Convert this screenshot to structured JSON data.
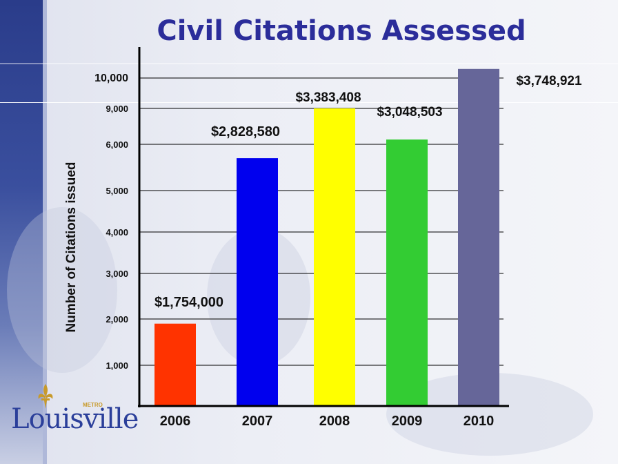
{
  "title": "Civil Citations Assessed",
  "logo": {
    "text": "Louisville",
    "tag": "METRO"
  },
  "colors": {
    "title": "#2b2d9a",
    "logo": "#2b3f9a",
    "fleur": "#c89a2a"
  },
  "chart_data": {
    "type": "bar",
    "title": "Civil Citations Assessed",
    "ylabel": "Number of Citations issued",
    "xlabel": "",
    "categories": [
      "2006",
      "2007",
      "2008",
      "2009",
      "2010"
    ],
    "values": [
      1900,
      5700,
      9000,
      6400,
      10300
    ],
    "bar_colors": [
      "#ff3300",
      "#0000ee",
      "#ffff00",
      "#33cc33",
      "#666699"
    ],
    "data_labels": [
      "$1,754,000",
      "$2,828,580",
      "$3,383,408",
      "$3,048,503",
      "$3,748,921"
    ],
    "yticks": [
      "1,000",
      "2,000",
      "3,000",
      "4,000",
      "5,000",
      "6,000",
      "9,000",
      "10,000"
    ],
    "grid": true,
    "legend": "none"
  }
}
